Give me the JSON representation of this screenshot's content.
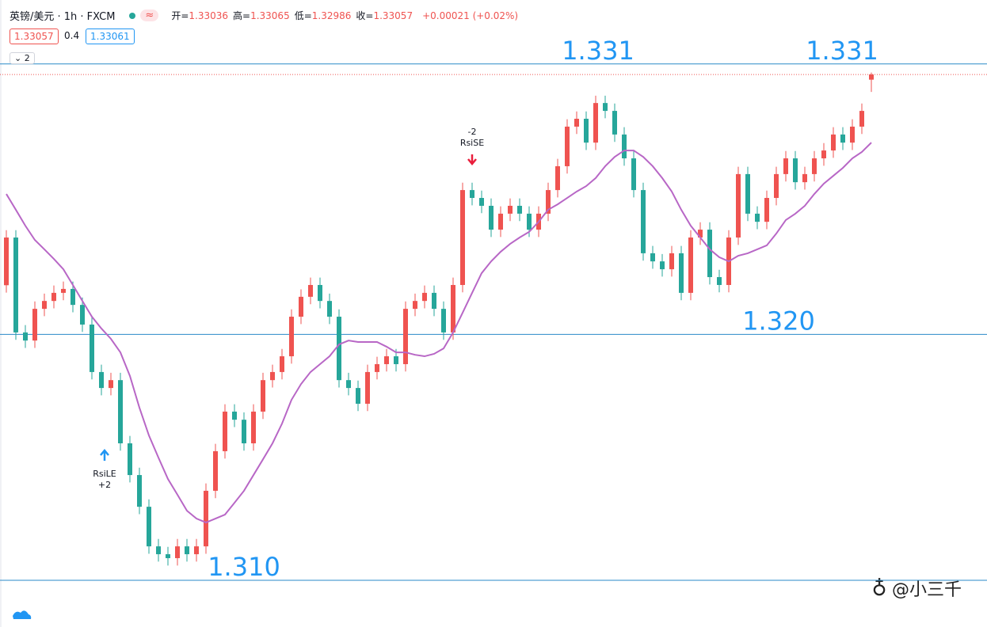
{
  "header": {
    "symbol": "英镑/美元 · 1h · FXCM",
    "ohlc": [
      {
        "k": "开=",
        "v": "1.33036"
      },
      {
        "k": "高=",
        "v": "1.33065"
      },
      {
        "k": "低=",
        "v": "1.32986"
      },
      {
        "k": "收=",
        "v": "1.33057"
      }
    ],
    "change": "+0.00021 (+0.02%)",
    "bid": "1.33057",
    "spread": "0.4",
    "ask": "1.33061",
    "collapse": "2"
  },
  "watermark": "@小三千",
  "chart_data": {
    "type": "candlestick",
    "up_color": "#ef5350",
    "down_color": "#26a69a",
    "ma_color": "#b867c6",
    "level_color": "#2a8ac8",
    "ylim": [
      1.3081,
      1.3336
    ],
    "levels": [
      {
        "value": 1.331,
        "label": "1.331"
      },
      {
        "value": 1.32,
        "label": "1.320"
      },
      {
        "value": 1.31,
        "label": "1.310"
      }
    ],
    "signals": [
      {
        "label": "RsiSE",
        "qty": "-2"
      },
      {
        "label": "RsiLE",
        "qty": "+2"
      }
    ],
    "open": [
      1.322,
      1.32394,
      1.32008,
      1.31975,
      1.32104,
      1.32136,
      1.32169,
      1.32185,
      1.3212,
      1.3204,
      1.31847,
      1.31782,
      1.31814,
      1.31557,
      1.31428,
      1.31299,
      1.31138,
      1.31106,
      1.3109,
      1.31138,
      1.31106,
      1.31138,
      1.31364,
      1.31525,
      1.31686,
      1.31653,
      1.31557,
      1.31686,
      1.31814,
      1.31847,
      1.31911,
      1.32072,
      1.32153,
      1.32201,
      1.32136,
      1.32072,
      1.31814,
      1.31782,
      1.31718,
      1.31847,
      1.31879,
      1.31911,
      1.31879,
      1.32104,
      1.32136,
      1.32169,
      1.32104,
      1.32008,
      1.32201,
      1.32587,
      1.32555,
      1.32523,
      1.32426,
      1.32491,
      1.32523,
      1.32491,
      1.32426,
      1.32491,
      1.32587,
      1.32684,
      1.32845,
      1.32877,
      1.3278,
      1.32941,
      1.32909,
      1.32813,
      1.32716,
      1.32587,
      1.3233,
      1.32297,
      1.32265,
      1.3233,
      1.32169,
      1.32394,
      1.32426,
      1.32233,
      1.32201,
      1.32394,
      1.32652,
      1.32491,
      1.32458,
      1.32555,
      1.32652,
      1.32716,
      1.32619,
      1.32652,
      1.32716,
      1.32748,
      1.32813,
      1.3278,
      1.32845,
      1.33036
    ],
    "high": [
      1.32424,
      1.32424,
      1.32038,
      1.32134,
      1.32166,
      1.32199,
      1.32215,
      1.32215,
      1.3215,
      1.3207,
      1.31877,
      1.31844,
      1.31844,
      1.31587,
      1.31458,
      1.31329,
      1.31168,
      1.31136,
      1.31168,
      1.31168,
      1.31168,
      1.31394,
      1.31555,
      1.31716,
      1.31716,
      1.31683,
      1.31716,
      1.31844,
      1.31877,
      1.31941,
      1.32102,
      1.32183,
      1.32231,
      1.32231,
      1.32166,
      1.32102,
      1.31844,
      1.31812,
      1.31877,
      1.31909,
      1.31941,
      1.31941,
      1.32134,
      1.32166,
      1.32199,
      1.32199,
      1.32134,
      1.32231,
      1.32617,
      1.32617,
      1.32585,
      1.32553,
      1.32521,
      1.32553,
      1.32553,
      1.32521,
      1.32521,
      1.32617,
      1.32714,
      1.32875,
      1.32907,
      1.32907,
      1.32971,
      1.32971,
      1.32939,
      1.32843,
      1.32746,
      1.32617,
      1.3236,
      1.32327,
      1.3236,
      1.3236,
      1.32424,
      1.32456,
      1.32456,
      1.32263,
      1.32424,
      1.32682,
      1.32682,
      1.32521,
      1.32585,
      1.32682,
      1.32746,
      1.32746,
      1.32682,
      1.32746,
      1.32778,
      1.32843,
      1.32843,
      1.32875,
      1.32939,
      1.33065
    ],
    "low": [
      1.3217,
      1.31978,
      1.31945,
      1.31945,
      1.32074,
      1.32106,
      1.32139,
      1.3209,
      1.3201,
      1.31817,
      1.31752,
      1.31752,
      1.31527,
      1.31398,
      1.31269,
      1.31108,
      1.31076,
      1.3106,
      1.3106,
      1.31076,
      1.31076,
      1.31108,
      1.31334,
      1.31495,
      1.31623,
      1.31527,
      1.31527,
      1.31656,
      1.31784,
      1.31817,
      1.31881,
      1.32042,
      1.32123,
      1.32106,
      1.32042,
      1.31784,
      1.31752,
      1.31688,
      1.31688,
      1.31817,
      1.31849,
      1.31849,
      1.31849,
      1.32074,
      1.32106,
      1.32074,
      1.31978,
      1.31978,
      1.32171,
      1.32525,
      1.32493,
      1.32396,
      1.32396,
      1.32461,
      1.32461,
      1.32396,
      1.32396,
      1.32461,
      1.32557,
      1.32654,
      1.32815,
      1.3275,
      1.3275,
      1.32879,
      1.32783,
      1.32686,
      1.32557,
      1.323,
      1.32267,
      1.32235,
      1.32235,
      1.32139,
      1.32139,
      1.32364,
      1.32203,
      1.32171,
      1.32171,
      1.32364,
      1.32461,
      1.32428,
      1.32428,
      1.32525,
      1.32622,
      1.32589,
      1.32589,
      1.32622,
      1.32686,
      1.32718,
      1.3275,
      1.3275,
      1.32815,
      1.32986
    ],
    "close": [
      1.32394,
      1.32008,
      1.31975,
      1.32104,
      1.32136,
      1.32169,
      1.32185,
      1.3212,
      1.3204,
      1.31847,
      1.31782,
      1.31814,
      1.31557,
      1.31428,
      1.31299,
      1.31138,
      1.31106,
      1.3109,
      1.31138,
      1.31106,
      1.31138,
      1.31364,
      1.31525,
      1.31686,
      1.31653,
      1.31557,
      1.31686,
      1.31814,
      1.31847,
      1.31911,
      1.32072,
      1.32153,
      1.32201,
      1.32136,
      1.32072,
      1.31814,
      1.31782,
      1.31718,
      1.31847,
      1.31879,
      1.31911,
      1.31879,
      1.32104,
      1.32136,
      1.32169,
      1.32104,
      1.32008,
      1.32201,
      1.32587,
      1.32555,
      1.32523,
      1.32426,
      1.32491,
      1.32523,
      1.32491,
      1.32426,
      1.32491,
      1.32587,
      1.32684,
      1.32845,
      1.32877,
      1.3278,
      1.32941,
      1.32909,
      1.32813,
      1.32716,
      1.32587,
      1.3233,
      1.32297,
      1.32265,
      1.3233,
      1.32169,
      1.32394,
      1.32426,
      1.32233,
      1.32201,
      1.32394,
      1.32652,
      1.32491,
      1.32458,
      1.32555,
      1.32652,
      1.32716,
      1.32619,
      1.32652,
      1.32716,
      1.32748,
      1.32813,
      1.3278,
      1.32845,
      1.32909,
      1.33057
    ],
    "ma": [
      1.32571,
      1.32507,
      1.32442,
      1.32384,
      1.32346,
      1.32307,
      1.32265,
      1.32201,
      1.32136,
      1.32072,
      1.32024,
      1.31982,
      1.31927,
      1.31831,
      1.31702,
      1.31589,
      1.31499,
      1.31412,
      1.31348,
      1.31283,
      1.31251,
      1.31235,
      1.31251,
      1.31267,
      1.31315,
      1.31364,
      1.31428,
      1.31492,
      1.31557,
      1.31637,
      1.31734,
      1.31798,
      1.31847,
      1.31879,
      1.31911,
      1.31959,
      1.31975,
      1.31969,
      1.31969,
      1.31969,
      1.3195,
      1.31927,
      1.31927,
      1.31917,
      1.31911,
      1.31921,
      1.31943,
      1.32008,
      1.32088,
      1.32169,
      1.32249,
      1.32297,
      1.32336,
      1.32368,
      1.32394,
      1.32417,
      1.32458,
      1.32507,
      1.32529,
      1.32555,
      1.32581,
      1.32603,
      1.32636,
      1.32684,
      1.32722,
      1.32748,
      1.32748,
      1.32722,
      1.32684,
      1.32636,
      1.32581,
      1.32507,
      1.32442,
      1.32394,
      1.32346,
      1.32314,
      1.32297,
      1.3232,
      1.3233,
      1.32346,
      1.32362,
      1.3241,
      1.32465,
      1.32491,
      1.32523,
      1.32571,
      1.32613,
      1.32645,
      1.32677,
      1.32716,
      1.32742,
      1.3278
    ]
  }
}
